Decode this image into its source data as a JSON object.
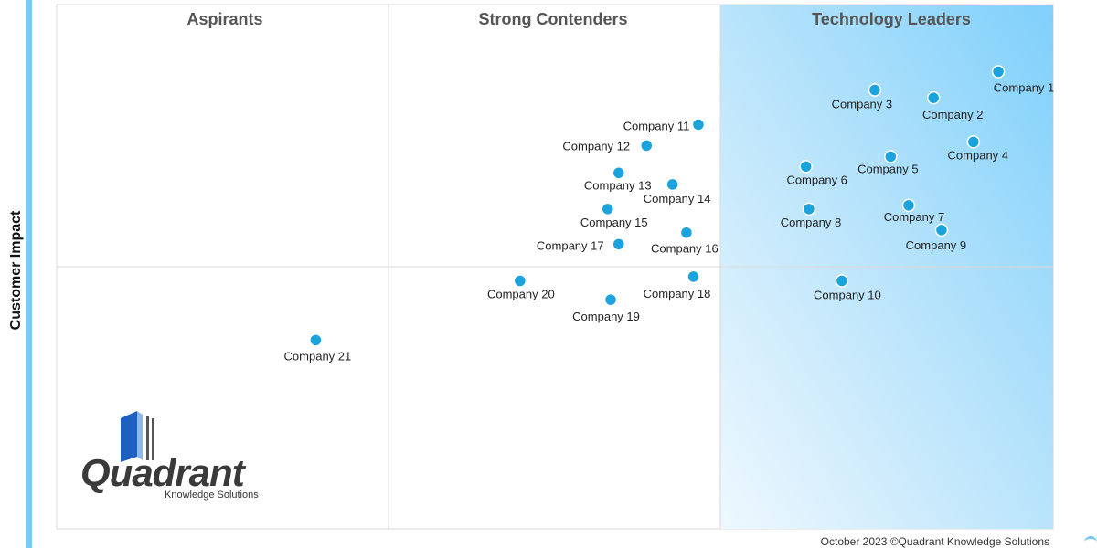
{
  "chart_data": {
    "type": "scatter",
    "xlabel": "",
    "ylabel": "Customer Impact",
    "quadrant_labels": [
      "Aspirants",
      "Strong Contenders",
      "Technology Leaders"
    ],
    "points": [
      {
        "label": "Company 1",
        "x": 0.945,
        "y": 0.872
      },
      {
        "label": "Company 2",
        "x": 0.88,
        "y": 0.822
      },
      {
        "label": "Company 3",
        "x": 0.821,
        "y": 0.837
      },
      {
        "label": "Company 4",
        "x": 0.92,
        "y": 0.738
      },
      {
        "label": "Company 5",
        "x": 0.837,
        "y": 0.71
      },
      {
        "label": "Company 6",
        "x": 0.752,
        "y": 0.691
      },
      {
        "label": "Company 7",
        "x": 0.855,
        "y": 0.617
      },
      {
        "label": "Company 8",
        "x": 0.755,
        "y": 0.61
      },
      {
        "label": "Company 9",
        "x": 0.888,
        "y": 0.57
      },
      {
        "label": "Company 10",
        "x": 0.788,
        "y": 0.473
      },
      {
        "label": "Company 11",
        "x": 0.644,
        "y": 0.771
      },
      {
        "label": "Company 12",
        "x": 0.592,
        "y": 0.731
      },
      {
        "label": "Company 13",
        "x": 0.564,
        "y": 0.679
      },
      {
        "label": "Company 14",
        "x": 0.618,
        "y": 0.657
      },
      {
        "label": "Company 15",
        "x": 0.553,
        "y": 0.61
      },
      {
        "label": "Company 16",
        "x": 0.632,
        "y": 0.565
      },
      {
        "label": "Company 17",
        "x": 0.564,
        "y": 0.543
      },
      {
        "label": "Company 18",
        "x": 0.639,
        "y": 0.481
      },
      {
        "label": "Company 19",
        "x": 0.556,
        "y": 0.437
      },
      {
        "label": "Company 20",
        "x": 0.465,
        "y": 0.473
      },
      {
        "label": "Company 21",
        "x": 0.26,
        "y": 0.36
      }
    ]
  },
  "logo": {
    "word": "Quadrant",
    "sub": "Knowledge Solutions"
  },
  "footer": "October 2023 ©Quadrant Knowledge Solutions",
  "colors": {
    "dot": "#1aa3dc",
    "leader_bg_light": "#e9f6fd",
    "leader_bg_dark": "#7fd0fb",
    "left_bar": "#7cc8f2"
  }
}
